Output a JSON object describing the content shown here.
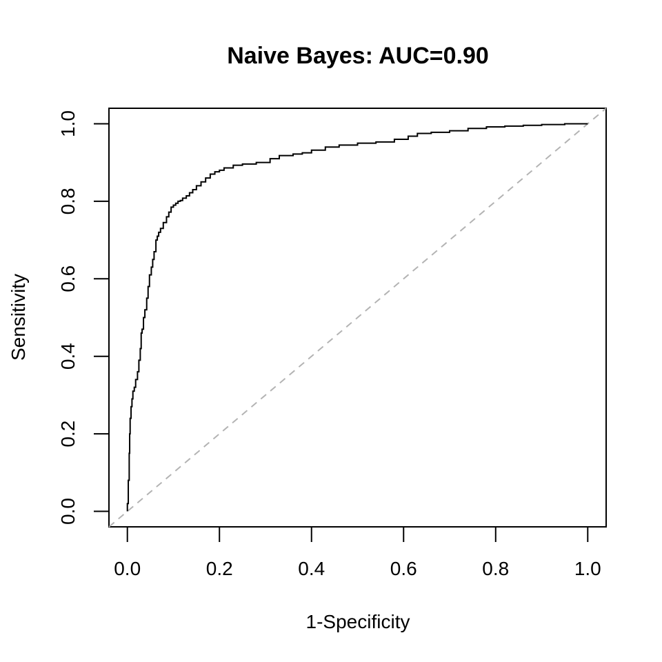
{
  "chart_data": {
    "type": "line",
    "title": "Naive Bayes:  AUC=0.90",
    "xlabel": "1-Specificity",
    "ylabel": "Sensitivity",
    "xlim": [
      -0.04,
      1.04
    ],
    "ylim": [
      -0.04,
      1.04
    ],
    "xticks": [
      "0.0",
      "0.2",
      "0.4",
      "0.6",
      "0.8",
      "1.0"
    ],
    "yticks": [
      "0.0",
      "0.2",
      "0.4",
      "0.6",
      "0.8",
      "1.0"
    ],
    "grid": false,
    "colors": {
      "roc": "#000000",
      "reference": "#b3b3b3"
    },
    "series": [
      {
        "style": "step",
        "x": [
          0.0,
          0.0,
          0.002,
          0.004,
          0.005,
          0.006,
          0.008,
          0.01,
          0.012,
          0.015,
          0.018,
          0.022,
          0.025,
          0.028,
          0.03,
          0.032,
          0.035,
          0.038,
          0.042,
          0.045,
          0.048,
          0.052,
          0.055,
          0.058,
          0.062,
          0.065,
          0.068,
          0.072,
          0.078,
          0.085,
          0.09,
          0.095,
          0.1,
          0.105,
          0.11,
          0.115,
          0.12,
          0.128,
          0.135,
          0.142,
          0.15,
          0.16,
          0.17,
          0.18,
          0.19,
          0.2,
          0.21,
          0.23,
          0.25,
          0.28,
          0.31,
          0.33,
          0.36,
          0.38,
          0.4,
          0.43,
          0.46,
          0.5,
          0.54,
          0.58,
          0.61,
          0.63,
          0.66,
          0.7,
          0.74,
          0.78,
          0.82,
          0.86,
          0.9,
          0.95,
          1.0
        ],
        "y": [
          0.0,
          0.02,
          0.08,
          0.15,
          0.2,
          0.24,
          0.27,
          0.29,
          0.31,
          0.32,
          0.34,
          0.36,
          0.39,
          0.42,
          0.46,
          0.47,
          0.5,
          0.52,
          0.55,
          0.58,
          0.61,
          0.63,
          0.65,
          0.67,
          0.7,
          0.71,
          0.72,
          0.73,
          0.745,
          0.76,
          0.772,
          0.785,
          0.79,
          0.795,
          0.8,
          0.802,
          0.808,
          0.814,
          0.822,
          0.83,
          0.84,
          0.85,
          0.86,
          0.87,
          0.876,
          0.88,
          0.886,
          0.893,
          0.896,
          0.9,
          0.91,
          0.918,
          0.922,
          0.925,
          0.932,
          0.94,
          0.945,
          0.95,
          0.953,
          0.96,
          0.968,
          0.975,
          0.978,
          0.982,
          0.988,
          0.992,
          0.994,
          0.996,
          0.998,
          1.0,
          1.0
        ]
      },
      {
        "style": "dashed",
        "x": [
          0.0,
          1.0
        ],
        "y": [
          0.0,
          1.0
        ]
      }
    ]
  }
}
